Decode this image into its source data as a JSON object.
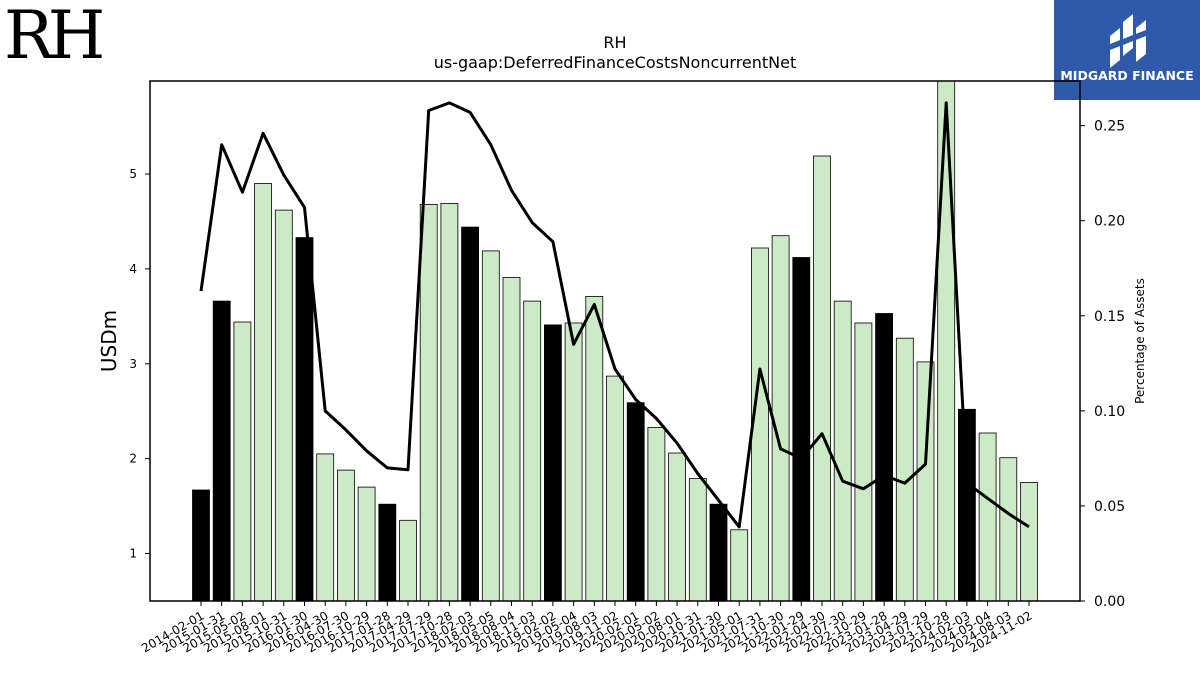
{
  "logos": {
    "left": "RH",
    "right": "MIDGARD FINANCE"
  },
  "chart_data": {
    "type": "bar",
    "title": "RH",
    "subtitle": "us-gaap:DeferredFinanceCostsNoncurrentNet",
    "ylabel": "USDm",
    "y2label": "Percentage of Assets",
    "ylim": [
      0.5,
      5.98
    ],
    "y2lim": [
      0.0,
      0.2735
    ],
    "yticks": [
      1,
      2,
      3,
      4,
      5
    ],
    "y2ticks": [
      "0.00",
      "0.05",
      "0.10",
      "0.15",
      "0.20",
      "0.25"
    ],
    "categories": [
      "2014-02-01",
      "2015-01-31",
      "2015-05-02",
      "2015-08-01",
      "2015-10-31",
      "2016-01-30",
      "2016-04-30",
      "2016-07-30",
      "2016-10-29",
      "2017-01-28",
      "2017-04-29",
      "2017-07-29",
      "2017-10-28",
      "2018-02-03",
      "2018-05-05",
      "2018-08-04",
      "2018-11-03",
      "2019-02-02",
      "2019-05-04",
      "2019-08-03",
      "2019-11-02",
      "2020-02-01",
      "2020-05-02",
      "2020-08-01",
      "2020-10-31",
      "2021-01-30",
      "2021-05-01",
      "2021-07-31",
      "2021-10-30",
      "2022-01-29",
      "2022-04-30",
      "2022-07-30",
      "2022-10-29",
      "2023-01-28",
      "2023-04-29",
      "2023-07-29",
      "2023-10-28",
      "2024-02-03",
      "2024-05-04",
      "2024-08-03",
      "2024-11-02"
    ],
    "values": [
      1.67,
      3.66,
      3.44,
      4.9,
      4.62,
      4.33,
      2.05,
      1.88,
      1.7,
      1.52,
      1.35,
      4.68,
      4.69,
      4.44,
      4.19,
      3.91,
      3.66,
      3.41,
      3.43,
      3.71,
      2.87,
      2.59,
      2.33,
      2.06,
      1.79,
      1.52,
      1.25,
      4.22,
      4.35,
      4.12,
      5.19,
      3.66,
      3.43,
      3.53,
      3.27,
      3.02,
      5.98,
      2.52,
      2.27,
      2.01,
      1.75
    ],
    "annual": [
      true,
      true,
      false,
      false,
      false,
      true,
      false,
      false,
      false,
      true,
      false,
      false,
      false,
      true,
      false,
      false,
      false,
      true,
      false,
      false,
      false,
      true,
      false,
      false,
      false,
      true,
      false,
      false,
      false,
      true,
      false,
      false,
      false,
      true,
      false,
      false,
      false,
      true,
      false,
      false,
      false
    ],
    "line": {
      "name": "Percentage of Assets",
      "values": [
        0.163,
        0.24,
        0.215,
        0.246,
        0.224,
        0.207,
        0.1,
        0.09,
        0.079,
        0.07,
        0.069,
        0.258,
        0.262,
        0.257,
        0.24,
        0.216,
        0.199,
        0.189,
        0.135,
        0.156,
        0.122,
        0.106,
        0.096,
        0.083,
        0.067,
        0.053,
        0.039,
        0.122,
        0.08,
        0.075,
        0.088,
        0.063,
        0.059,
        0.066,
        0.062,
        0.072,
        0.262,
        0.062,
        0.054,
        0.046,
        0.039
      ]
    },
    "colors": {
      "annual_bar": "#000000",
      "quarter_bar": "#cdeac6",
      "bar_edge": "#000000",
      "line": "#000000"
    },
    "grid": false,
    "legend": "none"
  }
}
